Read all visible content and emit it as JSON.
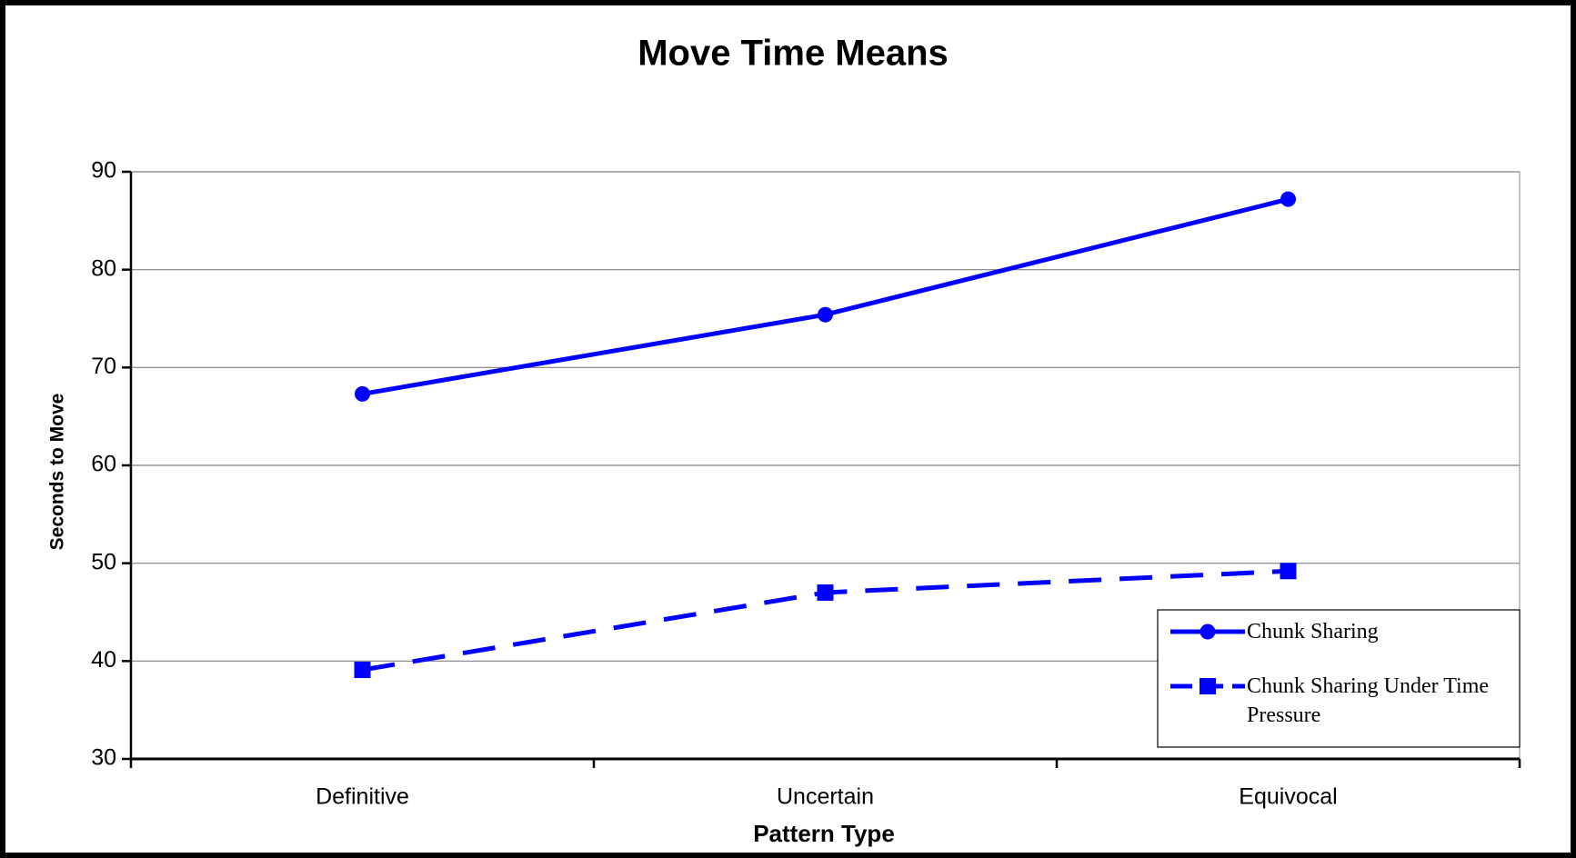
{
  "chart_data": {
    "type": "line",
    "title": "Move Time Means",
    "x_label": "Pattern Type",
    "y_label": "Seconds to Move",
    "categories": [
      "Definitive",
      "Uncertain",
      "Equivocal"
    ],
    "series": [
      {
        "name": "Chunk Sharing",
        "color": "#0000ff",
        "dash": "solid",
        "marker": "circle",
        "values": [
          67.3,
          75.4,
          87.2
        ]
      },
      {
        "name": "Chunk Sharing Under Time Pressure",
        "color": "#0000ff",
        "dash": "dashed",
        "marker": "square",
        "values": [
          39.1,
          47.0,
          49.2
        ]
      }
    ],
    "ylim": [
      30,
      90
    ],
    "yticks": [
      30,
      40,
      50,
      60,
      70,
      80,
      90
    ],
    "grid": true,
    "legend": "lower right"
  }
}
